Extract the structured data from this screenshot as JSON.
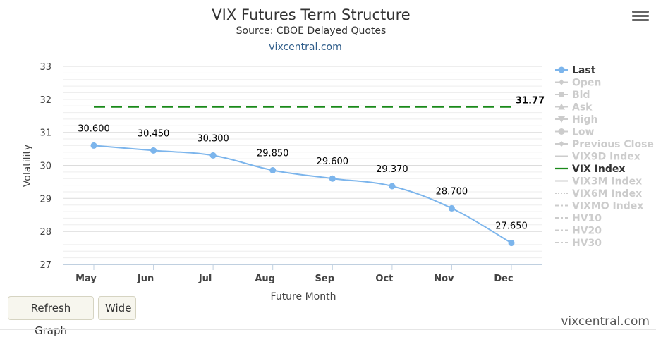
{
  "chart_data": {
    "type": "line",
    "title": "VIX Futures Term Structure",
    "subtitle": "Source: CBOE Delayed Quotes",
    "link": "vixcentral.com",
    "xlabel": "Future Month",
    "ylabel": "Volatility",
    "categories": [
      "May",
      "Jun",
      "Jul",
      "Aug",
      "Sep",
      "Oct",
      "Nov",
      "Dec"
    ],
    "ylim": [
      27,
      33
    ],
    "yticks": [
      "27",
      "28",
      "29",
      "30",
      "31",
      "32",
      "33"
    ],
    "grid": true,
    "legend_position": "right",
    "series": [
      {
        "name": "Last",
        "color": "#7cb5ec",
        "values": [
          30.6,
          30.45,
          30.3,
          29.85,
          29.6,
          29.37,
          28.7,
          27.65
        ],
        "labels": [
          "30.600",
          "30.450",
          "30.300",
          "29.850",
          "29.600",
          "29.370",
          "28.700",
          "27.650"
        ]
      },
      {
        "name": "VIX Index",
        "color": "#1a8a1a",
        "dashed": true,
        "value": 31.77,
        "label": "31.77"
      }
    ],
    "legend": [
      {
        "name": "Last",
        "active": true,
        "symbol": "circle",
        "color": "#7cb5ec"
      },
      {
        "name": "Open",
        "active": false,
        "symbol": "diamond"
      },
      {
        "name": "Bid",
        "active": false,
        "symbol": "square"
      },
      {
        "name": "Ask",
        "active": false,
        "symbol": "triangle"
      },
      {
        "name": "High",
        "active": false,
        "symbol": "triangle-down"
      },
      {
        "name": "Low",
        "active": false,
        "symbol": "circle"
      },
      {
        "name": "Previous Close",
        "active": false,
        "symbol": "diamond"
      },
      {
        "name": "VIX9D Index",
        "active": false,
        "symbol": "solid-line"
      },
      {
        "name": "VIX Index",
        "active": true,
        "symbol": "solid-line",
        "color": "#1a8a1a"
      },
      {
        "name": "VIX3M Index",
        "active": false,
        "symbol": "solid-line"
      },
      {
        "name": "VIX6M Index",
        "active": false,
        "symbol": "dotted-line"
      },
      {
        "name": "VIXMO Index",
        "active": false,
        "symbol": "dash-dot-line"
      },
      {
        "name": "HV10",
        "active": false,
        "symbol": "dash-dot-line"
      },
      {
        "name": "HV20",
        "active": false,
        "symbol": "dash-dot-line"
      },
      {
        "name": "HV30",
        "active": false,
        "symbol": "dash-dot-line"
      }
    ]
  },
  "controls": {
    "refresh_label": "Refresh Graph",
    "wide_label": "Wide"
  },
  "footer": {
    "brand": "vixcentral.com"
  },
  "colors": {
    "grid": "#e6e6e6",
    "axis": "#c0d0e0",
    "inactive_legend": "#cccccc",
    "active_legend_text": "#333333"
  }
}
